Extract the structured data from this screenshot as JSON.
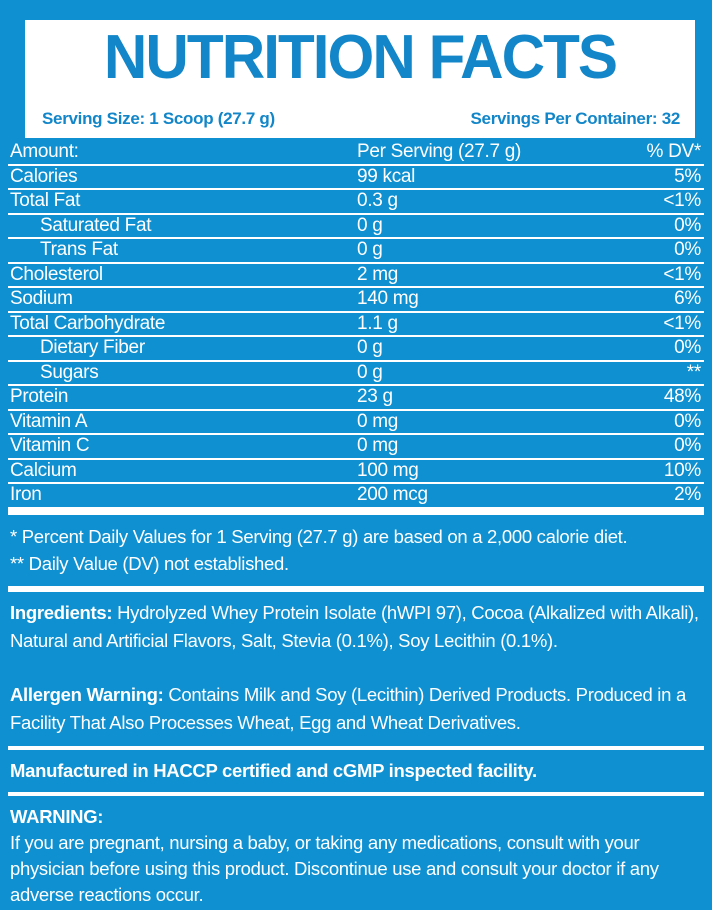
{
  "colors": {
    "background": "#0e90d1",
    "panel": "#ffffff",
    "accent_text": "#1286c8",
    "body_text": "#ffffff"
  },
  "header": {
    "title": "NUTRITION FACTS",
    "serving_size": "Serving Size: 1 Scoop (27.7 g)",
    "servings_per_container": "Servings Per Container: 32"
  },
  "table": {
    "columns": [
      "Amount:",
      "Per Serving (27.7 g)",
      "% DV*"
    ],
    "rows": [
      {
        "label": "Calories",
        "value": "99 kcal",
        "dv": "5%",
        "indent": false
      },
      {
        "label": "Total Fat",
        "value": "0.3 g",
        "dv": "<1%",
        "indent": false
      },
      {
        "label": "Saturated Fat",
        "value": "0 g",
        "dv": "0%",
        "indent": true
      },
      {
        "label": "Trans Fat",
        "value": "0 g",
        "dv": "0%",
        "indent": true
      },
      {
        "label": "Cholesterol",
        "value": "2 mg",
        "dv": "<1%",
        "indent": false
      },
      {
        "label": "Sodium",
        "value": "140 mg",
        "dv": "6%",
        "indent": false
      },
      {
        "label": "Total Carbohydrate",
        "value": "1.1 g",
        "dv": "<1%",
        "indent": false
      },
      {
        "label": "Dietary Fiber",
        "value": "0 g",
        "dv": "0%",
        "indent": true
      },
      {
        "label": "Sugars",
        "value": "0 g",
        "dv": "**",
        "indent": true
      },
      {
        "label": "Protein",
        "value": "23 g",
        "dv": "48%",
        "indent": false
      },
      {
        "label": "Vitamin A",
        "value": "0 mg",
        "dv": "0%",
        "indent": false
      },
      {
        "label": "Vitamin C",
        "value": "0 mg",
        "dv": "0%",
        "indent": false
      },
      {
        "label": "Calcium",
        "value": "100 mg",
        "dv": "10%",
        "indent": false
      },
      {
        "label": "Iron",
        "value": "200 mcg",
        "dv": "2%",
        "indent": false
      }
    ]
  },
  "footnotes": {
    "line1": "* Percent Daily Values for 1 Serving (27.7 g) are based on a 2,000 calorie diet.",
    "line2": "** Daily Value (DV) not established."
  },
  "ingredients": {
    "label": "Ingredients:",
    "text": "Hydrolyzed Whey Protein Isolate (hWPI 97), Cocoa (Alkalized with Alkali), Natural and Artificial Flavors, Salt, Stevia (0.1%), Soy Lecithin (0.1%)."
  },
  "allergen": {
    "label": "Allergen Warning:",
    "text": "Contains Milk and Soy (Lecithin) Derived Products. Produced in a Facility That Also Processes Wheat, Egg and Wheat Derivatives."
  },
  "manufactured": "Manufactured in HACCP certified and cGMP inspected facility.",
  "warning": {
    "label": "WARNING:",
    "text": "If you are pregnant, nursing a baby, or taking any medications, consult with your physician before using this product. Discontinue use and consult your doctor if any adverse reactions occur."
  }
}
